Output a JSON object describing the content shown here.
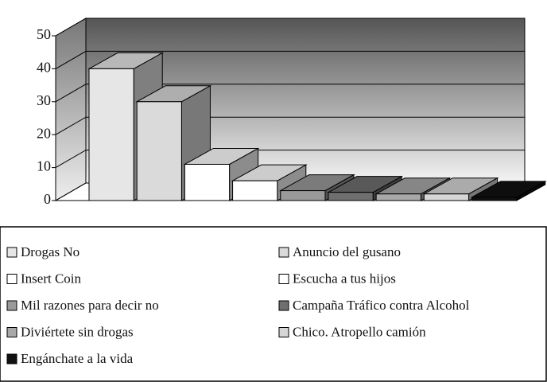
{
  "chart_data": {
    "type": "bar3d",
    "categories": [
      "Drogas No",
      "Anuncio del gusano",
      "Insert Coin",
      "Escucha a tus hijos",
      "Mil razones para decir no",
      "Campaña Tráfico contra Alcohol",
      "Diviértete sin drogas",
      "Chico. Atropello camión",
      "Engánchate a la vida"
    ],
    "values": [
      40,
      30,
      11,
      6,
      3,
      2.5,
      2,
      2,
      1
    ],
    "colors": [
      "#e6e6e6",
      "#dadada",
      "#ffffff",
      "#ffffff",
      "#9a9a9a",
      "#6f6f6f",
      "#a8a8a8",
      "#d6d6d6",
      "#111111"
    ],
    "ylim": [
      0,
      50
    ],
    "yticks": [
      0,
      10,
      20,
      30,
      40,
      50
    ],
    "grid": true,
    "legend": "bottom"
  }
}
